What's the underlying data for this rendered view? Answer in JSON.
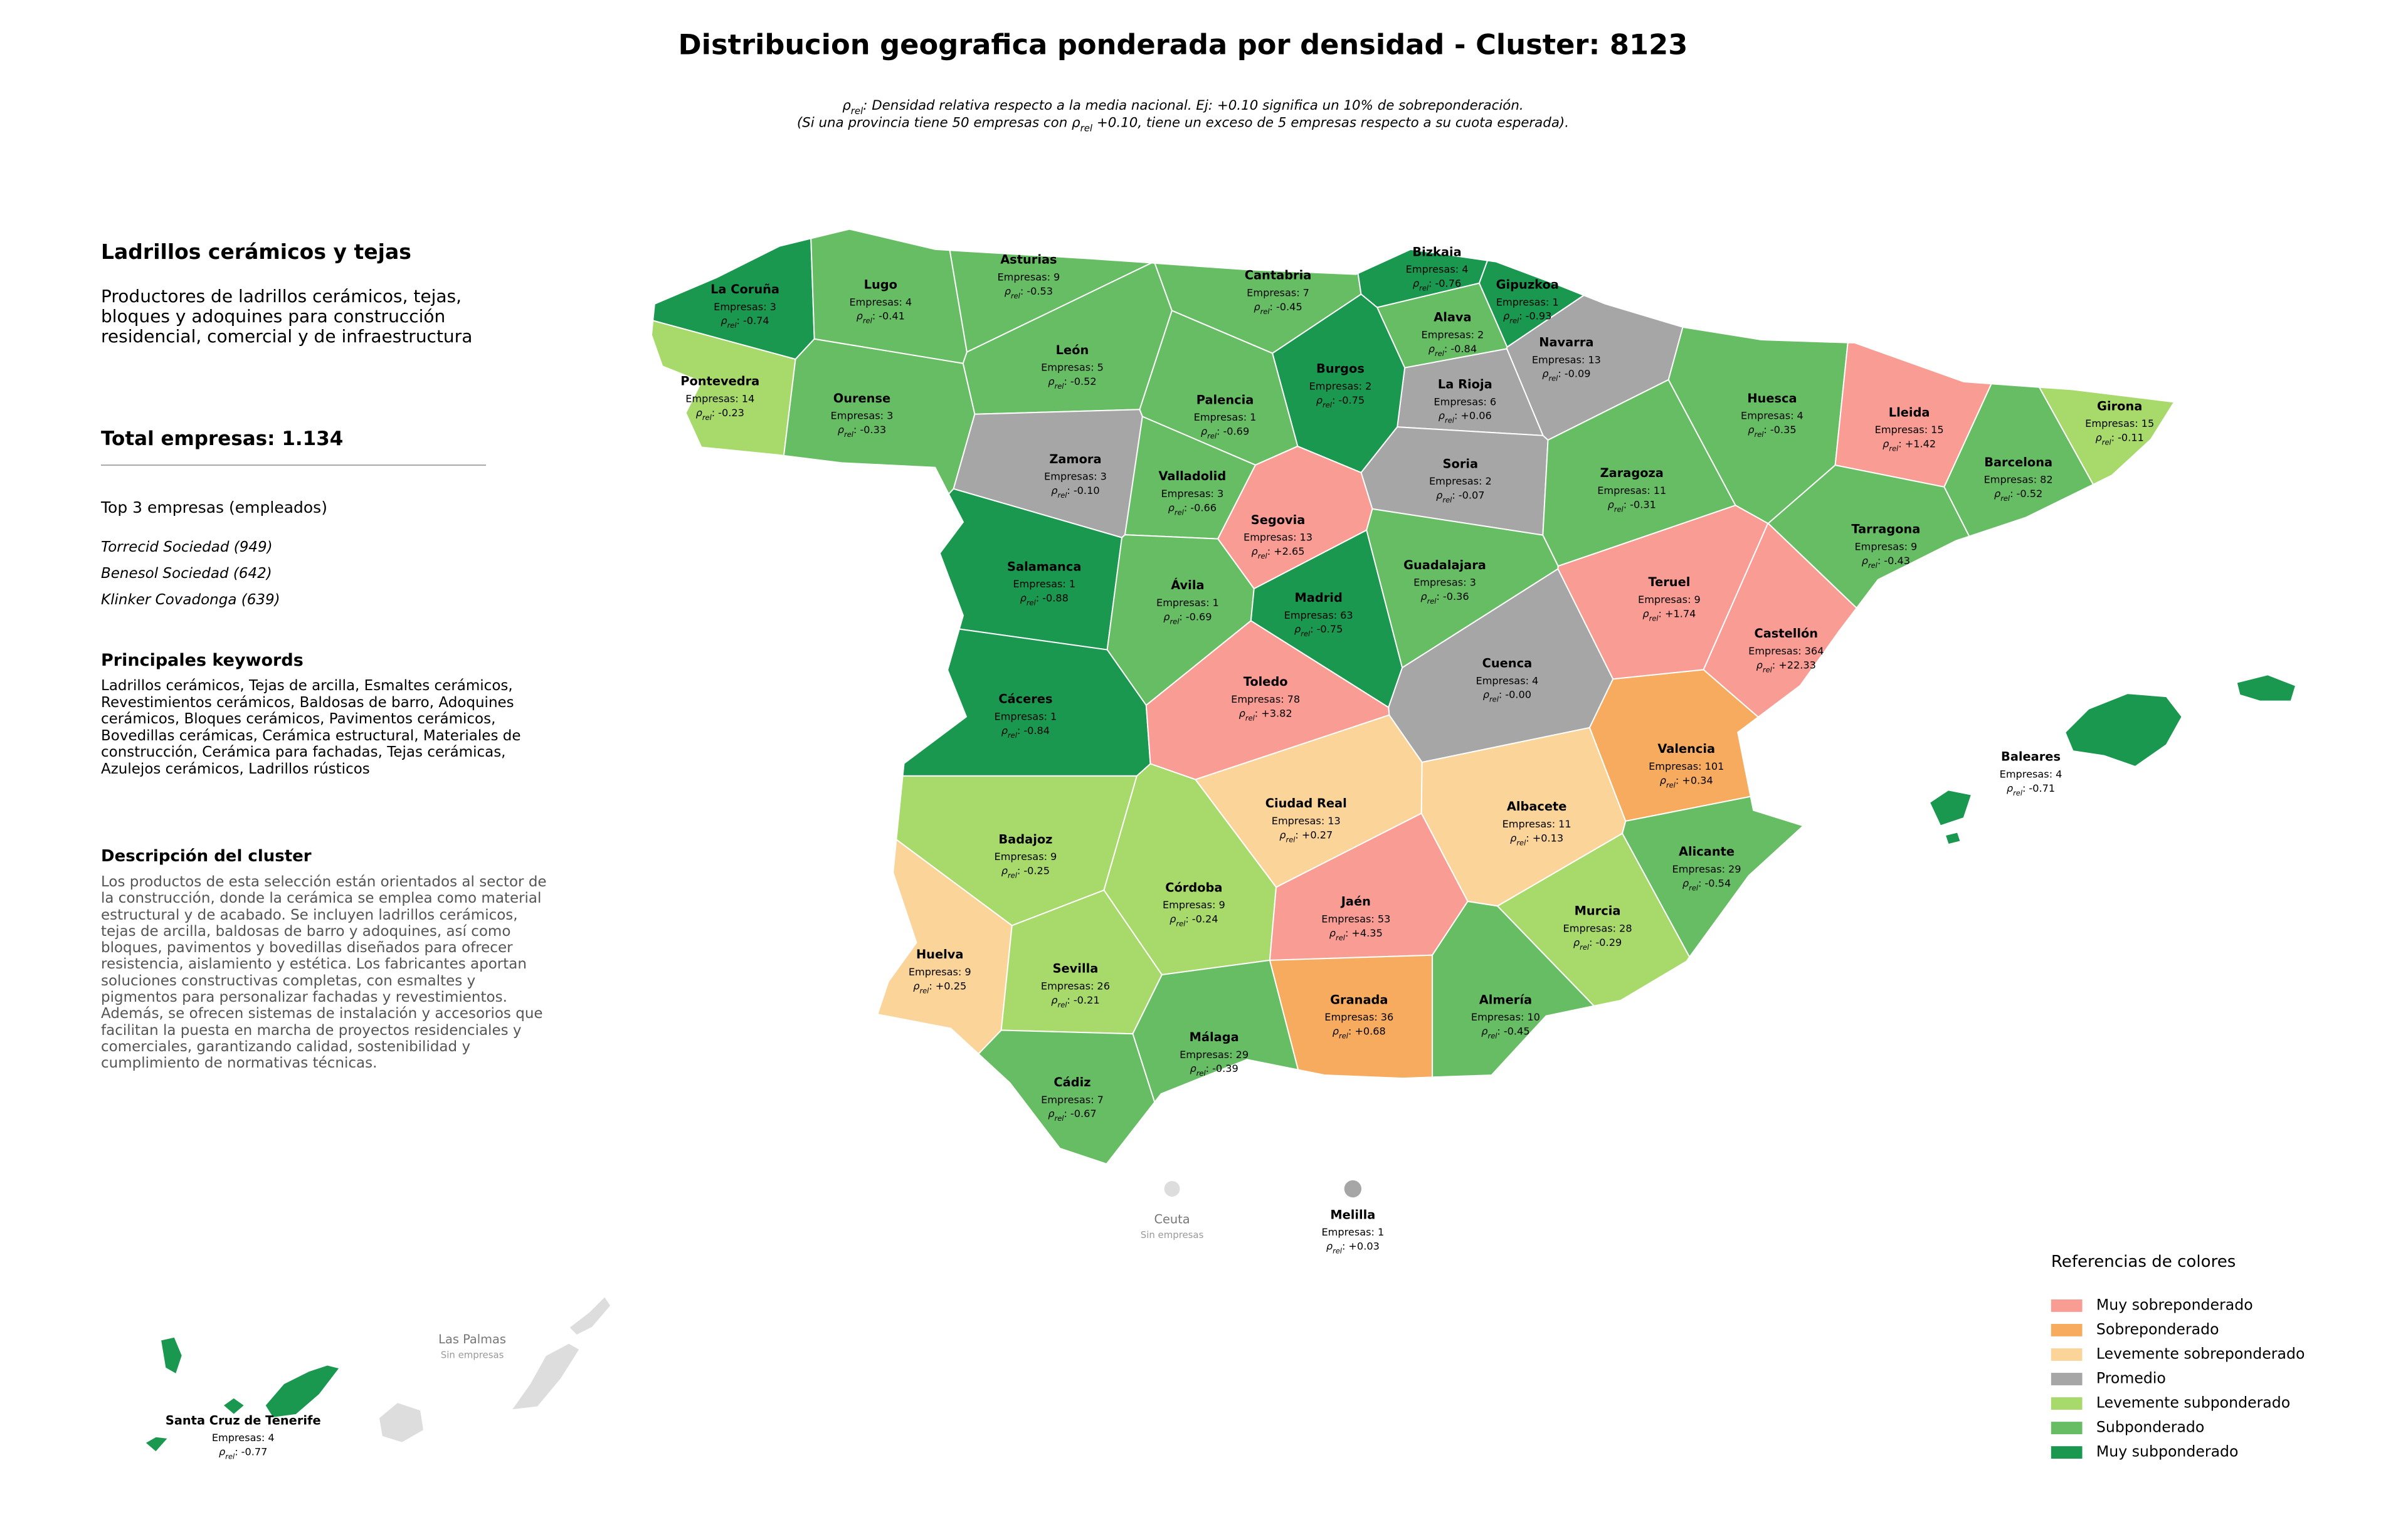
{
  "title": "Distribucion geografica ponderada por densidad - Cluster: 8123",
  "subtitle": [
    {
      "pre": "ρ",
      "sub": "rel",
      "post": ": Densidad relativa respecto a la media nacional. Ej: +0.10 significa un 10% de sobreponderación."
    },
    {
      "pre": "(Si una provincia tiene 50 empresas con ρ",
      "sub": "rel",
      "post": " +0.10, tiene un exceso de 5 empresas respecto a su cuota esperada)."
    }
  ],
  "panel": {
    "cluster_title": "Ladrillos cerámicos y tejas",
    "cluster_summary": "Productores de ladrillos cerámicos, tejas, bloques y adoquines para construcción residencial, comercial y de infraestructura",
    "total": "Total empresas: 1.134",
    "top_title": "Top 3 empresas (empleados)",
    "top": [
      "Torrecid Sociedad (949)",
      "Benesol Sociedad (642)",
      "Klinker Covadonga (639)"
    ],
    "keywords_title": "Principales keywords",
    "keywords": "Ladrillos cerámicos, Tejas de arcilla, Esmaltes cerámicos, Revestimientos cerámicos, Baldosas de barro, Adoquines cerámicos, Bloques cerámicos, Pavimentos cerámicos, Bovedillas cerámicas, Cerámica estructural, Materiales de construcción, Cerámica para fachadas, Tejas cerámicas, Azulejos cerámicos, Ladrillos rústicos",
    "description_title": "Descripción del cluster",
    "description": "Los productos de esta selección están orientados al sector de la construcción, donde la cerámica se emplea como material estructural y de acabado. Se incluyen ladrillos cerámicos, tejas de arcilla, baldosas de barro y adoquines, así como bloques, pavimentos y bovedillas diseñados para ofrecer resistencia, aislamiento y estética. Los fabricantes aportan soluciones constructivas completas, con esmaltes y pigmentos para personalizar fachadas y revestimientos. Además, se ofrecen sistemas de instalación y accesorios que facilitan la puesta en marcha de proyectos residenciales y comerciales, garantizando calidad, sostenibilidad y cumplimiento de normativas técnicas."
  },
  "labels": {
    "empresas": "Empresas",
    "rho": "ρ",
    "rho_sub": "rel",
    "sep": ":"
  },
  "legend_title": "Referencias de colores",
  "categories": [
    {
      "name": "Muy sobreponderado",
      "color": "#f89c94"
    },
    {
      "name": "Sobreponderado",
      "color": "#f6ab5e"
    },
    {
      "name": "Levemente sobreponderado",
      "color": "#fbd499"
    },
    {
      "name": "Promedio",
      "color": "#a6a6a6"
    },
    {
      "name": "Levemente subponderado",
      "color": "#a8d96b"
    },
    {
      "name": "Subponderado",
      "color": "#66bd63"
    },
    {
      "name": "Muy subponderado",
      "color": "#1a9850"
    }
  ],
  "no_data_color": "#dddddd",
  "provinces": [
    {
      "name": "La Coruña",
      "category": 6,
      "empresas": 3,
      "rho": "-0.74"
    },
    {
      "name": "Lugo",
      "category": 5,
      "empresas": 4,
      "rho": "-0.41"
    },
    {
      "name": "Asturias",
      "category": 5,
      "empresas": 9,
      "rho": "-0.53"
    },
    {
      "name": "Cantabria",
      "category": 5,
      "empresas": 7,
      "rho": "-0.45"
    },
    {
      "name": "Bizkaia",
      "category": 6,
      "empresas": 4,
      "rho": "-0.76"
    },
    {
      "name": "Gipuzkoa",
      "category": 6,
      "empresas": 1,
      "rho": "-0.93"
    },
    {
      "name": "Alava",
      "category": 5,
      "empresas": 2,
      "rho": "-0.84"
    },
    {
      "name": "Navarra",
      "category": 3,
      "empresas": 13,
      "rho": "-0.09"
    },
    {
      "name": "La Rioja",
      "category": 3,
      "empresas": 6,
      "rho": "+0.06"
    },
    {
      "name": "Burgos",
      "category": 6,
      "empresas": 2,
      "rho": "-0.75"
    },
    {
      "name": "Palencia",
      "category": 5,
      "empresas": 1,
      "rho": "-0.69"
    },
    {
      "name": "León",
      "category": 5,
      "empresas": 5,
      "rho": "-0.52"
    },
    {
      "name": "Pontevedra",
      "category": 4,
      "empresas": 14,
      "rho": "-0.23"
    },
    {
      "name": "Ourense",
      "category": 5,
      "empresas": 3,
      "rho": "-0.33"
    },
    {
      "name": "Zamora",
      "category": 3,
      "empresas": 3,
      "rho": "-0.10"
    },
    {
      "name": "Valladolid",
      "category": 5,
      "empresas": 3,
      "rho": "-0.66"
    },
    {
      "name": "Soria",
      "category": 3,
      "empresas": 2,
      "rho": "-0.07"
    },
    {
      "name": "Huesca",
      "category": 5,
      "empresas": 4,
      "rho": "-0.35"
    },
    {
      "name": "Lleida",
      "category": 0,
      "empresas": 15,
      "rho": "+1.42"
    },
    {
      "name": "Girona",
      "category": 4,
      "empresas": 15,
      "rho": "-0.11"
    },
    {
      "name": "Barcelona",
      "category": 5,
      "empresas": 82,
      "rho": "-0.52"
    },
    {
      "name": "Tarragona",
      "category": 5,
      "empresas": 9,
      "rho": "-0.43"
    },
    {
      "name": "Zaragoza",
      "category": 5,
      "empresas": 11,
      "rho": "-0.31"
    },
    {
      "name": "Segovia",
      "category": 0,
      "empresas": 13,
      "rho": "+2.65"
    },
    {
      "name": "Salamanca",
      "category": 6,
      "empresas": 1,
      "rho": "-0.88"
    },
    {
      "name": "Ávila",
      "category": 5,
      "empresas": 1,
      "rho": "-0.69"
    },
    {
      "name": "Madrid",
      "category": 6,
      "empresas": 63,
      "rho": "-0.75"
    },
    {
      "name": "Guadalajara",
      "category": 5,
      "empresas": 3,
      "rho": "-0.36"
    },
    {
      "name": "Teruel",
      "category": 0,
      "empresas": 9,
      "rho": "+1.74"
    },
    {
      "name": "Castellón",
      "category": 0,
      "empresas": 364,
      "rho": "+22.33"
    },
    {
      "name": "Cuenca",
      "category": 3,
      "empresas": 4,
      "rho": "-0.00"
    },
    {
      "name": "Cáceres",
      "category": 6,
      "empresas": 1,
      "rho": "-0.84"
    },
    {
      "name": "Toledo",
      "category": 0,
      "empresas": 78,
      "rho": "+3.82"
    },
    {
      "name": "Valencia",
      "category": 1,
      "empresas": 101,
      "rho": "+0.34"
    },
    {
      "name": "Badajoz",
      "category": 4,
      "empresas": 9,
      "rho": "-0.25"
    },
    {
      "name": "Ciudad Real",
      "category": 2,
      "empresas": 13,
      "rho": "+0.27"
    },
    {
      "name": "Albacete",
      "category": 2,
      "empresas": 11,
      "rho": "+0.13"
    },
    {
      "name": "Alicante",
      "category": 5,
      "empresas": 29,
      "rho": "-0.54"
    },
    {
      "name": "Córdoba",
      "category": 4,
      "empresas": 9,
      "rho": "-0.24"
    },
    {
      "name": "Jaén",
      "category": 0,
      "empresas": 53,
      "rho": "+4.35"
    },
    {
      "name": "Murcia",
      "category": 4,
      "empresas": 28,
      "rho": "-0.29"
    },
    {
      "name": "Huelva",
      "category": 2,
      "empresas": 9,
      "rho": "+0.25"
    },
    {
      "name": "Sevilla",
      "category": 4,
      "empresas": 26,
      "rho": "-0.21"
    },
    {
      "name": "Granada",
      "category": 1,
      "empresas": 36,
      "rho": "+0.68"
    },
    {
      "name": "Almería",
      "category": 5,
      "empresas": 10,
      "rho": "-0.45"
    },
    {
      "name": "Málaga",
      "category": 5,
      "empresas": 29,
      "rho": "-0.39"
    },
    {
      "name": "Cádiz",
      "category": 5,
      "empresas": 7,
      "rho": "-0.67"
    },
    {
      "name": "Baleares",
      "category": 6,
      "empresas": 4,
      "rho": "-0.71"
    },
    {
      "name": "Santa Cruz de Tenerife",
      "category": 6,
      "empresas": 4,
      "rho": "-0.77"
    },
    {
      "name": "Melilla",
      "category": 3,
      "empresas": 1,
      "rho": "+0.03"
    }
  ],
  "no_data": [
    {
      "name": "Ceuta",
      "note": "Sin empresas"
    },
    {
      "name": "Las Palmas",
      "note": "Sin empresas"
    }
  ]
}
